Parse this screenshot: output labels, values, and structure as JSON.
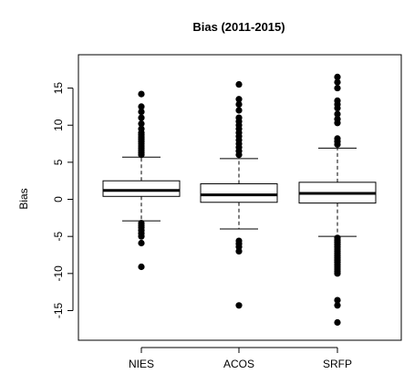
{
  "chart_data": {
    "type": "boxplot",
    "title": "Bias (2011-2015)",
    "xlabel": "",
    "ylabel": "Bias",
    "ylim": [
      -19,
      19.5
    ],
    "yticks": [
      -15,
      -10,
      -5,
      0,
      5,
      10,
      15
    ],
    "grid": false,
    "legend": "none",
    "categories": [
      "NIES",
      "ACOS",
      "SRFP"
    ],
    "boxes": [
      {
        "name": "NIES",
        "whisker_low": -2.9,
        "q1": 0.4,
        "median": 1.2,
        "q3": 2.5,
        "whisker_high": 5.7,
        "outliers_high": [
          6.0,
          6.3,
          6.6,
          6.9,
          7.2,
          7.5,
          7.8,
          8.1,
          8.4,
          8.7,
          9.0,
          9.5,
          10.2,
          11.0,
          11.8,
          12.5,
          14.2
        ],
        "outliers_low": [
          -3.2,
          -3.5,
          -3.8,
          -4.2,
          -4.6,
          -5.0,
          -5.9,
          -9.1
        ]
      },
      {
        "name": "ACOS",
        "whisker_low": -4.0,
        "q1": -0.4,
        "median": 0.6,
        "q3": 2.1,
        "whisker_high": 5.5,
        "outliers_high": [
          6.0,
          6.5,
          7.0,
          7.5,
          8.0,
          8.5,
          9.0,
          9.5,
          10.0,
          10.5,
          11.0,
          12.0,
          12.8,
          13.5,
          15.5
        ],
        "outliers_low": [
          -5.6,
          -6.0,
          -6.4,
          -7.0,
          -14.3
        ]
      },
      {
        "name": "SRFP",
        "whisker_low": -5.0,
        "q1": -0.5,
        "median": 0.8,
        "q3": 2.3,
        "whisker_high": 6.9,
        "outliers_high": [
          7.4,
          7.8,
          8.2,
          10.3,
          10.8,
          11.5,
          12.3,
          12.8,
          13.3,
          15.0,
          15.8,
          16.5
        ],
        "outliers_low": [
          -5.2,
          -5.5,
          -5.8,
          -6.1,
          -6.4,
          -6.7,
          -7.0,
          -7.3,
          -7.6,
          -7.9,
          -8.2,
          -8.5,
          -8.8,
          -9.1,
          -9.4,
          -9.7,
          -10.0,
          -13.6,
          -14.3,
          -16.6
        ]
      }
    ]
  }
}
